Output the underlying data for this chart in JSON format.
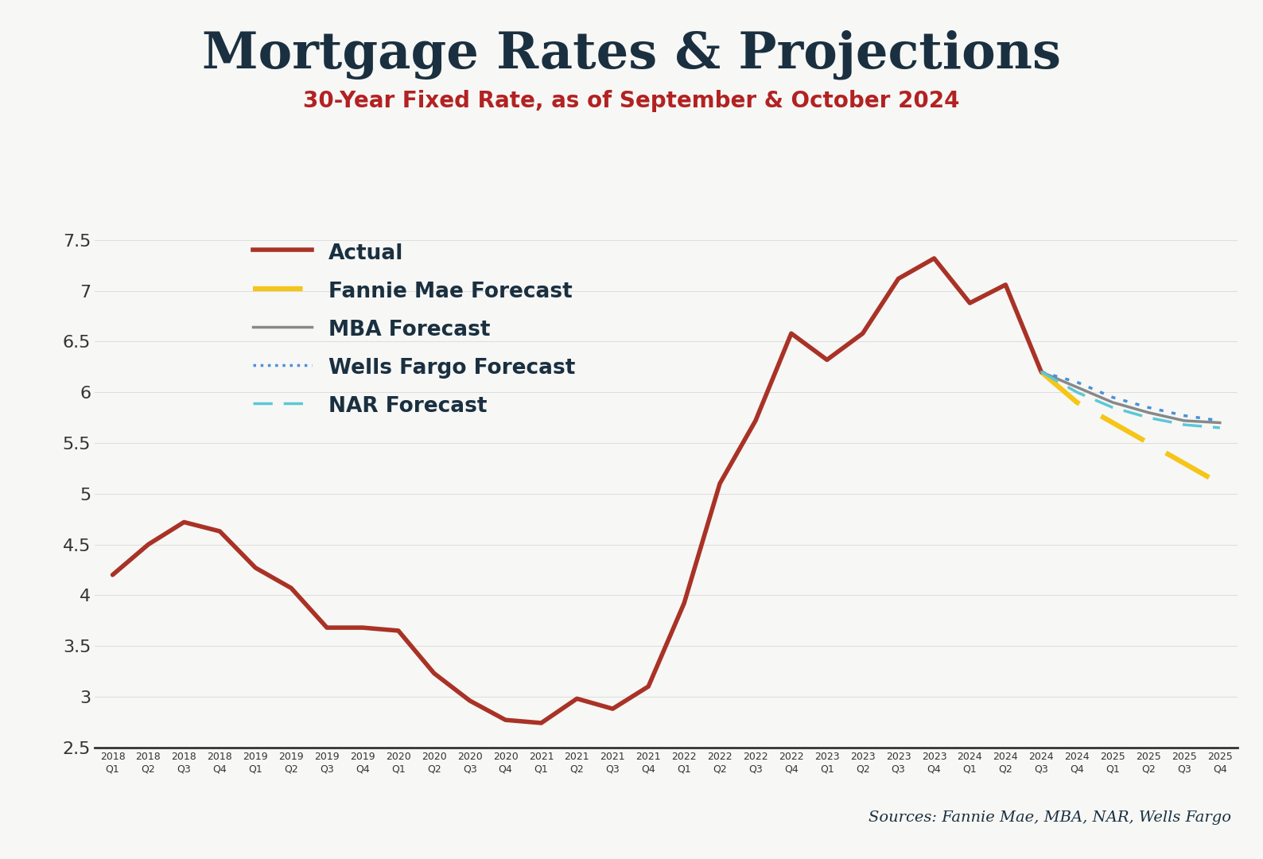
{
  "title": "Mortgage Rates & Projections",
  "subtitle": "30-Year Fixed Rate, as of September & October 2024",
  "title_color": "#1a3040",
  "subtitle_color": "#b22222",
  "background_color": "#f7f7f5",
  "top_bar_color": "#a93226",
  "source_text": "Sources: Fannie Mae, MBA, NAR, Wells Fargo",
  "ylim": [
    2.5,
    7.75
  ],
  "yticks": [
    2.5,
    3.0,
    3.5,
    4.0,
    4.5,
    5.0,
    5.5,
    6.0,
    6.5,
    7.0,
    7.5
  ],
  "ytick_labels": [
    "2.5",
    "3",
    "3.5",
    "4",
    "4.5",
    "5",
    "5.5",
    "6",
    "6.5",
    "7",
    "7.5"
  ],
  "actual_color": "#a93226",
  "fannie_color": "#f5c518",
  "mba_color": "#888888",
  "wells_color": "#4a90d9",
  "nar_color": "#5bc8d6",
  "actual_data": {
    "labels": [
      "2018Q1",
      "2018Q2",
      "2018Q3",
      "2018Q4",
      "2019Q1",
      "2019Q2",
      "2019Q3",
      "2019Q4",
      "2020Q1",
      "2020Q2",
      "2020Q3",
      "2020Q4",
      "2021Q1",
      "2021Q2",
      "2021Q3",
      "2021Q4",
      "2022Q1",
      "2022Q2",
      "2022Q3",
      "2022Q4",
      "2023Q1",
      "2023Q2",
      "2023Q3",
      "2023Q4",
      "2024Q1",
      "2024Q2",
      "2024Q3"
    ],
    "values": [
      4.2,
      4.5,
      4.72,
      4.63,
      4.27,
      4.07,
      3.68,
      3.68,
      3.65,
      3.23,
      2.96,
      2.77,
      2.74,
      2.98,
      2.88,
      3.1,
      3.92,
      5.1,
      5.72,
      6.58,
      6.32,
      6.58,
      7.12,
      7.32,
      6.88,
      7.06,
      6.2
    ]
  },
  "fannie_forecast": {
    "labels": [
      "2024Q3",
      "2024Q4",
      "2025Q1",
      "2025Q2",
      "2025Q3",
      "2025Q4"
    ],
    "values": [
      6.2,
      5.9,
      5.7,
      5.5,
      5.3,
      5.1
    ]
  },
  "mba_forecast": {
    "labels": [
      "2024Q3",
      "2024Q4",
      "2025Q1",
      "2025Q2",
      "2025Q3",
      "2025Q4"
    ],
    "values": [
      6.2,
      6.05,
      5.9,
      5.8,
      5.72,
      5.7
    ]
  },
  "wells_forecast": {
    "labels": [
      "2024Q3",
      "2024Q4",
      "2025Q1",
      "2025Q2",
      "2025Q3",
      "2025Q4"
    ],
    "values": [
      6.2,
      6.1,
      5.95,
      5.85,
      5.77,
      5.72
    ]
  },
  "nar_forecast": {
    "labels": [
      "2024Q3",
      "2024Q4",
      "2025Q1",
      "2025Q2",
      "2025Q3",
      "2025Q4"
    ],
    "values": [
      6.2,
      6.0,
      5.85,
      5.75,
      5.68,
      5.65
    ]
  },
  "all_labels": [
    "2018Q1",
    "2018Q2",
    "2018Q3",
    "2018Q4",
    "2019Q1",
    "2019Q2",
    "2019Q3",
    "2019Q4",
    "2020Q1",
    "2020Q2",
    "2020Q3",
    "2020Q4",
    "2021Q1",
    "2021Q2",
    "2021Q3",
    "2021Q4",
    "2022Q1",
    "2022Q2",
    "2022Q3",
    "2022Q4",
    "2023Q1",
    "2023Q2",
    "2023Q3",
    "2023Q4",
    "2024Q1",
    "2024Q2",
    "2024Q3",
    "2024Q4",
    "2025Q1",
    "2025Q2",
    "2025Q3",
    "2025Q4"
  ]
}
